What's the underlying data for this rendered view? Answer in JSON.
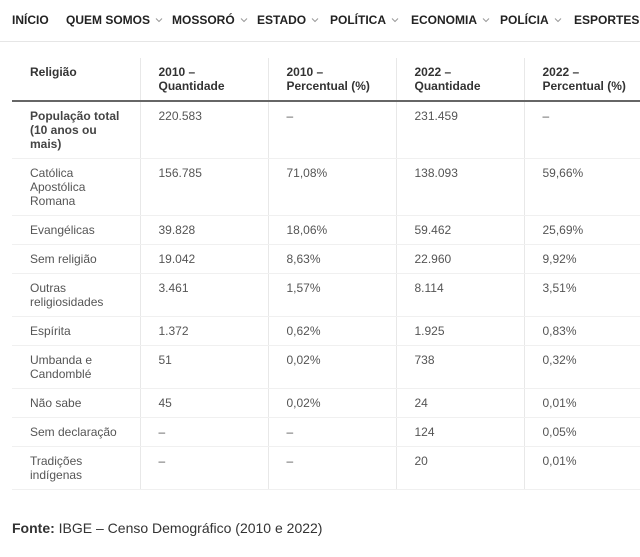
{
  "nav": [
    "INÍCIO",
    "QUEM SOMOS",
    "MOSSORÓ",
    "ESTADO",
    "POLÍTICA",
    "ECONOMIA",
    "POLÍCIA",
    "ESPORTES"
  ],
  "table": {
    "header": [
      "Religião",
      "2010 – Quantidade",
      "2010 – Percentual (%)",
      "2022 – Quantidade",
      "2022 – Percentual (%)"
    ],
    "rows": [
      [
        "População total (10 anos ou mais)",
        "220.583",
        "–",
        "231.459",
        "–"
      ],
      [
        "Católica Apostólica Romana",
        "156.785",
        "71,08%",
        "138.093",
        "59,66%"
      ],
      [
        "Evangélicas",
        "39.828",
        "18,06%",
        "59.462",
        "25,69%"
      ],
      [
        "Sem religião",
        "19.042",
        "8,63%",
        "22.960",
        "9,92%"
      ],
      [
        "Outras religiosidades",
        "3.461",
        "1,57%",
        "8.114",
        "3,51%"
      ],
      [
        "Espírita",
        "1.372",
        "0,62%",
        "1.925",
        "0,83%"
      ],
      [
        "Umbanda e Candomblé",
        "51",
        "0,02%",
        "738",
        "0,32%"
      ],
      [
        "Não sabe",
        "45",
        "0,02%",
        "24",
        "0,01%"
      ],
      [
        "Sem declaração",
        "–",
        "–",
        "124",
        "0,05%"
      ],
      [
        "Tradições indígenas",
        "–",
        "–",
        "20",
        "0,01%"
      ]
    ]
  },
  "source": {
    "label": "Fonte:",
    "text": "IBGE – Censo Demográfico (2010 e 2022)"
  }
}
